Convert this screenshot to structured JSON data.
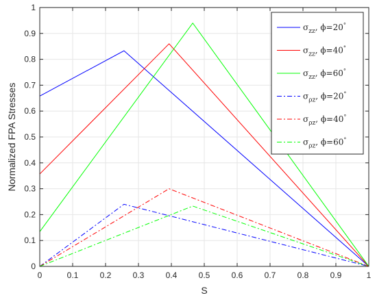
{
  "chart_data": {
    "type": "line",
    "title": "",
    "xlabel": "S",
    "ylabel": "Normalized FPA Stresses",
    "xlim": [
      0,
      1
    ],
    "ylim": [
      0,
      1
    ],
    "xticks": [
      "0",
      "0.1",
      "0.2",
      "0.3",
      "0.4",
      "0.5",
      "0.6",
      "0.7",
      "0.8",
      "0.9",
      "1"
    ],
    "yticks": [
      "0",
      "0.1",
      "0.2",
      "0.3",
      "0.4",
      "0.5",
      "0.6",
      "0.7",
      "0.8",
      "0.9",
      "1"
    ],
    "grid": true,
    "legend_position": "top-right",
    "series": [
      {
        "symbol": "σ",
        "sub": "zz",
        "angle": "20",
        "color": "#0000ff",
        "dash": "solid",
        "points": [
          [
            0,
            0.658
          ],
          [
            0.256,
            0.833
          ],
          [
            1,
            0
          ]
        ]
      },
      {
        "symbol": "σ",
        "sub": "zz",
        "angle": "40",
        "color": "#ff0000",
        "dash": "solid",
        "points": [
          [
            0,
            0.357
          ],
          [
            0.393,
            0.86
          ],
          [
            1,
            0
          ]
        ]
      },
      {
        "symbol": "σ",
        "sub": "zz",
        "angle": "60",
        "color": "#00ff00",
        "dash": "solid",
        "points": [
          [
            0,
            0.134
          ],
          [
            0.465,
            0.94
          ],
          [
            1,
            0
          ]
        ]
      },
      {
        "symbol": "σ",
        "sub": "ρz",
        "angle": "20",
        "color": "#0000ff",
        "dash": "dashdot",
        "points": [
          [
            0,
            0
          ],
          [
            0.256,
            0.24
          ],
          [
            1,
            0
          ]
        ]
      },
      {
        "symbol": "σ",
        "sub": "ρz",
        "angle": "40",
        "color": "#ff0000",
        "dash": "dashdot",
        "points": [
          [
            0,
            0
          ],
          [
            0.393,
            0.3
          ],
          [
            1,
            0
          ]
        ]
      },
      {
        "symbol": "σ",
        "sub": "ρz",
        "angle": "60",
        "color": "#00ff00",
        "dash": "dashdot",
        "points": [
          [
            0,
            0
          ],
          [
            0.465,
            0.233
          ],
          [
            1,
            0
          ]
        ]
      }
    ]
  }
}
